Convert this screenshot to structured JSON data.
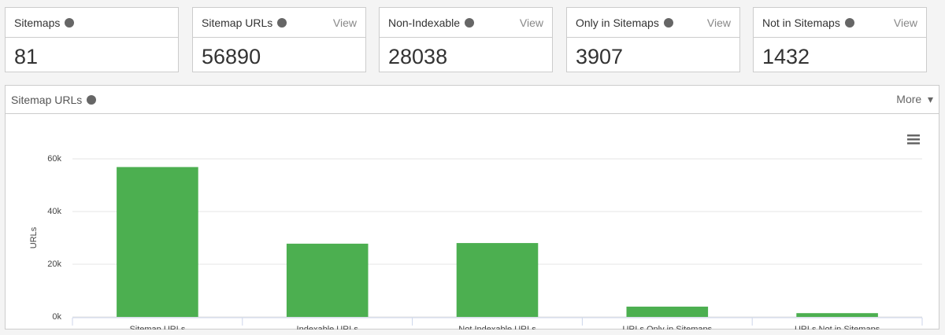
{
  "cards": [
    {
      "label": "Sitemaps",
      "value": 81
    },
    {
      "label": "Sitemap URLs",
      "value": 56890,
      "link": "View"
    },
    {
      "label": "Non-Indexable",
      "value": 28038,
      "link": "View"
    },
    {
      "label": "Only in Sitemaps",
      "value": 3907,
      "link": "View"
    },
    {
      "label": "Not in Sitemaps",
      "value": 1432,
      "link": "View"
    }
  ],
  "panel": {
    "title": "Sitemap URLs",
    "menu": "More"
  },
  "chart_data": {
    "type": "bar",
    "y_label": "URLs",
    "categories": [
      "Sitemap URLs",
      "Indexable URLs",
      "Not Indexable URLs",
      "URLs Only in Sitemaps",
      "URLs Not in Sitemaps"
    ],
    "values": [
      56890,
      27800,
      28038,
      3907,
      1432
    ],
    "color": "#4caf50",
    "ylim": [
      0,
      60000
    ],
    "yticks": [
      {
        "value": 0,
        "label": "0k"
      },
      {
        "value": 20000,
        "label": "20k"
      },
      {
        "value": 40000,
        "label": "40k"
      },
      {
        "value": 60000,
        "label": "60k"
      }
    ],
    "grid": true
  }
}
